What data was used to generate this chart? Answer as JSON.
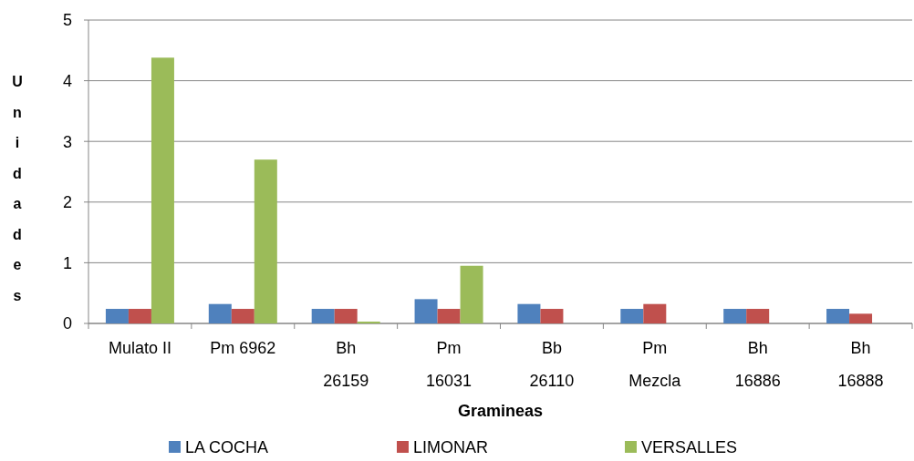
{
  "chart_data": {
    "type": "bar",
    "xlabel": "Gramineas",
    "ylabel": "Unidades",
    "categories": [
      "Mulato II",
      "Pm 6962",
      "Bh\n26159",
      "Pm\n16031",
      "Bb\n26110",
      "Pm\nMezcla",
      "Bh\n16886",
      "Bh\n16888"
    ],
    "series": [
      {
        "name": "LA COCHA",
        "color": "#4f81bd",
        "values": [
          0.24,
          0.32,
          0.24,
          0.4,
          0.32,
          0.24,
          0.24,
          0.24
        ]
      },
      {
        "name": "LIMONAR",
        "color": "#c0504d",
        "values": [
          0.24,
          0.24,
          0.24,
          0.24,
          0.24,
          0.32,
          0.24,
          0.16
        ]
      },
      {
        "name": "VERSALLES",
        "color": "#9bbb59",
        "values": [
          4.38,
          2.7,
          0.03,
          0.95,
          0,
          0,
          0,
          0
        ]
      }
    ],
    "ylim": [
      0,
      5
    ],
    "yticks": [
      0,
      1,
      2,
      3,
      4,
      5
    ],
    "grid": "y",
    "legend": "bottom"
  }
}
